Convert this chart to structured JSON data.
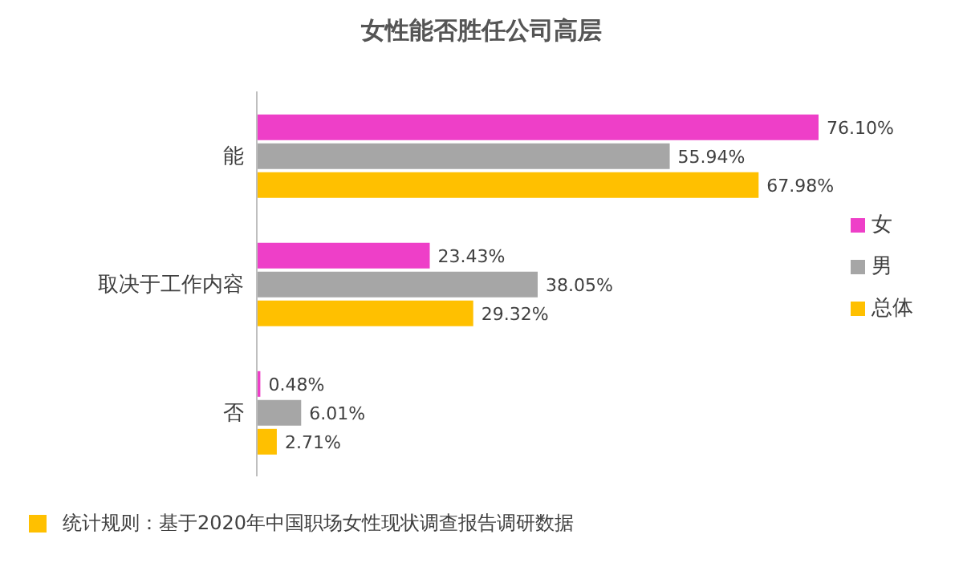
{
  "chart_data": {
    "type": "bar",
    "orientation": "horizontal",
    "title": "女性能否胜任公司高层",
    "categories": [
      "能",
      "取决于工作内容",
      "否"
    ],
    "series": [
      {
        "name": "女",
        "color": "#ee3fc8",
        "values": [
          76.1,
          23.43,
          0.48
        ],
        "value_labels": [
          "76.10%",
          "23.43%",
          "0.48%"
        ]
      },
      {
        "name": "男",
        "color": "#a6a6a6",
        "values": [
          55.94,
          38.05,
          6.01
        ],
        "value_labels": [
          "55.94%",
          "38.05%",
          "6.01%"
        ]
      },
      {
        "name": "总体",
        "color": "#ffc000",
        "values": [
          67.98,
          29.32,
          2.71
        ],
        "value_labels": [
          "67.98%",
          "29.32%",
          "2.71%"
        ]
      }
    ],
    "legend": "right",
    "grid": false,
    "annotations": [
      "统计规则：基于2020年中国职场女性现状调查报告调研数据"
    ]
  }
}
